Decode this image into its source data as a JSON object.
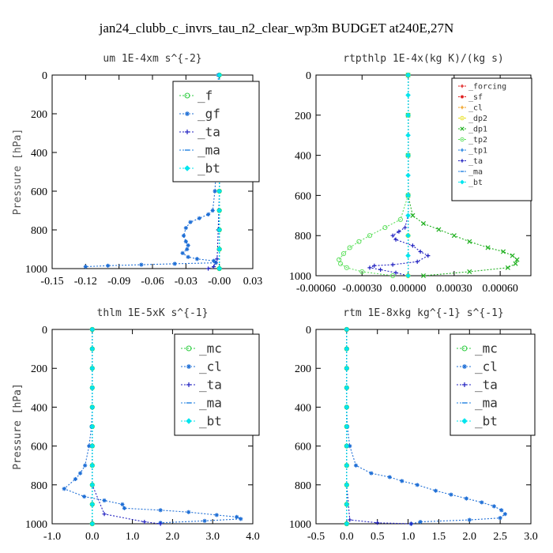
{
  "title": "jan24_clubb_c_invrs_tau_n2_clear_wp3m  BUDGET at240E,27N",
  "colors": {
    "green": "#2ecc40",
    "blue": "#1f6fd6",
    "navy": "#2020c0",
    "cyan": "#00e5ee",
    "red": "#e02020",
    "orange": "#f0a020",
    "yellow": "#e8e020",
    "dkgreen": "#20b020",
    "lime": "#60e060",
    "azure": "#2080e0"
  },
  "chart_data": [
    {
      "type": "line",
      "title": "um  1E-4xm s^{-2}",
      "ylabel": "Pressure [hPa]",
      "xlim": [
        -0.15,
        0.03
      ],
      "ylim": [
        1000,
        0
      ],
      "xticks": [
        "-0.15",
        "-0.12",
        "-0.09",
        "-0.06",
        "-0.03",
        "-0.00",
        "0.03"
      ],
      "xtick_values": [
        -0.15,
        -0.12,
        -0.09,
        -0.06,
        -0.03,
        0.0,
        0.03
      ],
      "yticks": [
        "0",
        "200",
        "400",
        "600",
        "800",
        "1000"
      ],
      "ytick_values": [
        0,
        200,
        400,
        600,
        800,
        1000
      ],
      "legend": [
        "_f",
        "_gf",
        "_ta",
        "_ma",
        "_bt"
      ],
      "series": [
        {
          "name": "_f",
          "color": "green",
          "marker": "circle",
          "x": [
            0,
            0,
            0,
            0,
            0,
            0,
            0,
            0,
            0,
            0,
            0
          ],
          "y": [
            0,
            100,
            200,
            300,
            400,
            500,
            600,
            700,
            800,
            900,
            1000
          ]
        },
        {
          "name": "_gf",
          "color": "blue",
          "marker": "star",
          "x": [
            -0.001,
            -0.001,
            -0.001,
            -0.002,
            -0.002,
            -0.003,
            -0.004,
            -0.006,
            -0.01,
            -0.018,
            -0.026,
            -0.03,
            -0.032,
            -0.03,
            -0.028,
            -0.029,
            -0.033,
            -0.028,
            -0.02,
            -0.005,
            -0.003,
            -0.04,
            -0.07,
            -0.1,
            -0.12
          ],
          "y": [
            0,
            100,
            200,
            300,
            400,
            500,
            600,
            700,
            720,
            740,
            760,
            790,
            830,
            860,
            880,
            900,
            920,
            940,
            950,
            960,
            970,
            975,
            980,
            985,
            990
          ]
        },
        {
          "name": "_ta",
          "color": "navy",
          "marker": "plus",
          "x": [
            0,
            0,
            0,
            0,
            -0.001,
            -0.002,
            -0.005,
            -0.01
          ],
          "y": [
            0,
            200,
            400,
            600,
            800,
            950,
            990,
            1000
          ]
        },
        {
          "name": "_ma",
          "color": "azure",
          "marker": "dash",
          "x": [
            0,
            0,
            0,
            0,
            0,
            0
          ],
          "y": [
            0,
            200,
            400,
            600,
            800,
            1000
          ]
        },
        {
          "name": "_bt",
          "color": "cyan",
          "marker": "diamond",
          "x": [
            0,
            0,
            0,
            0,
            0,
            0,
            0,
            0,
            0,
            0,
            0
          ],
          "y": [
            0,
            100,
            200,
            300,
            400,
            500,
            600,
            700,
            800,
            900,
            1000
          ]
        }
      ]
    },
    {
      "type": "line",
      "title": "rtpthlp  1E-4x(kg K)/(kg s)",
      "ylabel": "",
      "xlim": [
        -0.0006,
        0.0008
      ],
      "ylim": [
        1000,
        0
      ],
      "xticks": [
        "-0.00060",
        "-0.00030",
        "0.00000",
        "0.00030",
        "0.00060"
      ],
      "xtick_values": [
        -0.0006,
        -0.0003,
        0.0,
        0.0003,
        0.0006
      ],
      "yticks": [
        "0",
        "200",
        "400",
        "600",
        "800",
        "1000"
      ],
      "ytick_values": [
        0,
        200,
        400,
        600,
        800,
        1000
      ],
      "legend": [
        "_forcing",
        "_sf",
        "_cl",
        "_dp2",
        "_dp1",
        "_tp2",
        "_tp1",
        "_ta",
        "_ma",
        "_bt"
      ],
      "series": [
        {
          "name": "_forcing",
          "color": "red",
          "marker": "plus",
          "x": [
            0,
            0,
            0,
            0,
            0,
            0,
            0,
            0,
            0,
            0,
            0
          ],
          "y": [
            0,
            100,
            200,
            300,
            400,
            500,
            600,
            700,
            800,
            900,
            1000
          ]
        },
        {
          "name": "_sf",
          "color": "red",
          "marker": "star",
          "x": [
            0,
            0,
            0,
            0,
            0,
            0
          ],
          "y": [
            0,
            200,
            400,
            600,
            800,
            1000
          ]
        },
        {
          "name": "_cl",
          "color": "orange",
          "marker": "plus",
          "x": [
            0,
            0,
            0,
            0,
            0,
            0
          ],
          "y": [
            0,
            200,
            400,
            600,
            800,
            1000
          ]
        },
        {
          "name": "_dp2",
          "color": "yellow",
          "marker": "circle",
          "x": [
            0,
            0,
            0,
            0,
            0,
            0
          ],
          "y": [
            0,
            200,
            400,
            600,
            800,
            1000
          ]
        },
        {
          "name": "_dp1",
          "color": "dkgreen",
          "marker": "cross",
          "x": [
            0,
            0,
            0,
            0,
            3e-05,
            0.0001,
            0.0002,
            0.0003,
            0.0004,
            0.00052,
            0.00062,
            0.00068,
            0.00071,
            0.0007,
            0.00065,
            0.0004,
            0.0001
          ],
          "y": [
            0,
            200,
            400,
            600,
            700,
            740,
            770,
            800,
            830,
            860,
            880,
            900,
            920,
            940,
            960,
            980,
            1000
          ]
        },
        {
          "name": "_tp2",
          "color": "lime",
          "marker": "circle",
          "x": [
            0,
            0,
            0,
            0,
            -5e-05,
            -0.00015,
            -0.00025,
            -0.00032,
            -0.00038,
            -0.00042,
            -0.00045,
            -0.00044,
            -0.0004,
            -0.0003,
            -0.0001
          ],
          "y": [
            0,
            200,
            400,
            600,
            720,
            760,
            800,
            830,
            860,
            890,
            920,
            940,
            960,
            980,
            1000
          ]
        },
        {
          "name": "_tp1",
          "color": "azure",
          "marker": "plus",
          "x": [
            0,
            0,
            0,
            0,
            0,
            0
          ],
          "y": [
            0,
            200,
            400,
            600,
            800,
            1000
          ]
        },
        {
          "name": "_ta",
          "color": "navy",
          "marker": "plus",
          "x": [
            0,
            0,
            0,
            -2e-05,
            -6e-05,
            -0.0001,
            -8e-05,
            3e-05,
            8e-05,
            0.00013,
            6e-05,
            -0.0001,
            -0.00022,
            -0.00025,
            -0.00018,
            -8e-05,
            0
          ],
          "y": [
            0,
            400,
            700,
            760,
            780,
            800,
            820,
            850,
            880,
            900,
            930,
            945,
            950,
            960,
            970,
            985,
            1000
          ]
        },
        {
          "name": "_ma",
          "color": "azure",
          "marker": "dash",
          "x": [
            0,
            0,
            0,
            0,
            0,
            0
          ],
          "y": [
            0,
            200,
            400,
            600,
            800,
            1000
          ]
        },
        {
          "name": "_bt",
          "color": "cyan",
          "marker": "diamond",
          "x": [
            0,
            0,
            0,
            0,
            0,
            0,
            0,
            0,
            0,
            0,
            0
          ],
          "y": [
            0,
            100,
            200,
            300,
            400,
            500,
            600,
            700,
            800,
            900,
            1000
          ]
        }
      ]
    },
    {
      "type": "line",
      "title": "thlm  1E-5xK s^{-1}",
      "ylabel": "Pressure [hPa]",
      "xlim": [
        -1.0,
        4.0
      ],
      "ylim": [
        1000,
        0
      ],
      "xticks": [
        "-1.0",
        "0.0",
        "1.0",
        "2.0",
        "3.0",
        "4.0"
      ],
      "xtick_values": [
        -1.0,
        0.0,
        1.0,
        2.0,
        3.0,
        4.0
      ],
      "yticks": [
        "0",
        "200",
        "400",
        "600",
        "800",
        "1000"
      ],
      "ytick_values": [
        0,
        200,
        400,
        600,
        800,
        1000
      ],
      "legend": [
        "_mc",
        "_cl",
        "_ta",
        "_ma",
        "_bt"
      ],
      "series": [
        {
          "name": "_mc",
          "color": "green",
          "marker": "circle",
          "x": [
            0,
            0,
            0,
            0,
            0,
            0,
            0,
            0,
            0,
            0,
            0
          ],
          "y": [
            0,
            100,
            200,
            300,
            400,
            500,
            600,
            700,
            800,
            900,
            1000
          ]
        },
        {
          "name": "_cl",
          "color": "blue",
          "marker": "star",
          "x": [
            0,
            0,
            0,
            0,
            0,
            -0.02,
            -0.08,
            -0.18,
            -0.3,
            -0.42,
            -0.7,
            -0.2,
            0.3,
            0.75,
            0.8,
            1.7,
            2.4,
            3.1,
            3.6,
            3.7,
            2.8,
            1.7
          ],
          "y": [
            0,
            100,
            200,
            300,
            400,
            500,
            600,
            700,
            740,
            770,
            820,
            860,
            880,
            900,
            920,
            930,
            940,
            955,
            965,
            975,
            985,
            995
          ]
        },
        {
          "name": "_ta",
          "color": "navy",
          "marker": "plus",
          "x": [
            0,
            0,
            0,
            0,
            0,
            0.3,
            1.3,
            1.7
          ],
          "y": [
            0,
            200,
            400,
            600,
            800,
            950,
            990,
            1000
          ]
        },
        {
          "name": "_ma",
          "color": "azure",
          "marker": "dash",
          "x": [
            0,
            0,
            0,
            0,
            0,
            0
          ],
          "y": [
            0,
            200,
            400,
            600,
            800,
            1000
          ]
        },
        {
          "name": "_bt",
          "color": "cyan",
          "marker": "diamond",
          "x": [
            0,
            0,
            0,
            0,
            0,
            0,
            0,
            0,
            0,
            0,
            0
          ],
          "y": [
            0,
            100,
            200,
            300,
            400,
            500,
            600,
            700,
            800,
            900,
            1000
          ]
        }
      ]
    },
    {
      "type": "line",
      "title": "rtm  1E-8xkg kg^{-1} s^{-1}",
      "ylabel": "Pressure [hPa]",
      "xlim": [
        -0.5,
        3.0
      ],
      "ylim": [
        1000,
        0
      ],
      "xticks": [
        "-0.5",
        "0.0",
        "0.5",
        "1.0",
        "1.5",
        "2.0",
        "2.5",
        "3.0"
      ],
      "xtick_values": [
        -0.5,
        0.0,
        0.5,
        1.0,
        1.5,
        2.0,
        2.5,
        3.0
      ],
      "yticks": [
        "0",
        "200",
        "400",
        "600",
        "800",
        "1000"
      ],
      "ytick_values": [
        0,
        200,
        400,
        600,
        800,
        1000
      ],
      "legend": [
        "_mc",
        "_cl",
        "_ta",
        "_ma",
        "_bt"
      ],
      "series": [
        {
          "name": "_mc",
          "color": "green",
          "marker": "circle",
          "x": [
            0,
            0,
            0,
            0,
            0,
            0,
            0,
            0,
            0,
            0,
            0
          ],
          "y": [
            0,
            100,
            200,
            300,
            400,
            500,
            600,
            700,
            800,
            900,
            1000
          ]
        },
        {
          "name": "_cl",
          "color": "blue",
          "marker": "star",
          "x": [
            0,
            0,
            0,
            0,
            0,
            0.01,
            0.05,
            0.15,
            0.4,
            0.7,
            0.9,
            1.15,
            1.45,
            1.7,
            1.95,
            2.2,
            2.4,
            2.52,
            2.58,
            2.5,
            2.0,
            1.2,
            1.05
          ],
          "y": [
            0,
            100,
            200,
            300,
            400,
            500,
            600,
            700,
            740,
            760,
            780,
            800,
            830,
            850,
            870,
            890,
            910,
            930,
            950,
            970,
            980,
            990,
            1000
          ]
        },
        {
          "name": "_ta",
          "color": "navy",
          "marker": "plus",
          "x": [
            0,
            0,
            0,
            0,
            0,
            0.05,
            0.5,
            1.05
          ],
          "y": [
            0,
            200,
            400,
            600,
            800,
            980,
            995,
            1000
          ]
        },
        {
          "name": "_ma",
          "color": "azure",
          "marker": "dash",
          "x": [
            0,
            0,
            0,
            0,
            0,
            0
          ],
          "y": [
            0,
            200,
            400,
            600,
            800,
            1000
          ]
        },
        {
          "name": "_bt",
          "color": "cyan",
          "marker": "diamond",
          "x": [
            0,
            0,
            0,
            0,
            0,
            0,
            0,
            0,
            0,
            0,
            0
          ],
          "y": [
            0,
            100,
            200,
            300,
            400,
            500,
            600,
            700,
            800,
            900,
            1000
          ]
        }
      ]
    }
  ]
}
